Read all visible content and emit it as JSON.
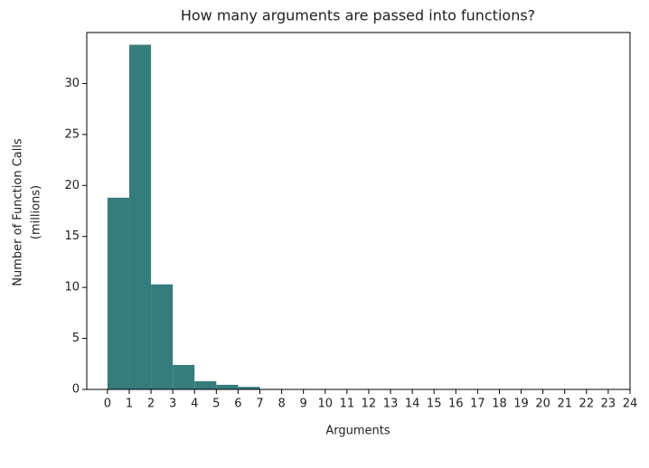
{
  "chart_data": {
    "type": "histogram",
    "title": "How many arguments are passed into functions?",
    "xlabel": "Arguments",
    "ylabel": [
      "Number of Function Calls",
      "(millions)"
    ],
    "bins": [
      0,
      1,
      2,
      3,
      4,
      5,
      6,
      7,
      8,
      9,
      10,
      11,
      12,
      13,
      14,
      15,
      16,
      17,
      18,
      19,
      20,
      21,
      22,
      23,
      24
    ],
    "values": [
      18.8,
      33.8,
      10.3,
      2.4,
      0.8,
      0.45,
      0.25,
      0.05,
      0.03,
      0.02,
      0.01,
      0,
      0,
      0,
      0,
      0,
      0,
      0,
      0,
      0,
      0,
      0,
      0,
      0
    ],
    "color": "#357d7d",
    "xlim": [
      -0.95,
      24
    ],
    "ylim": [
      0,
      35
    ],
    "xticks": [
      0,
      1,
      2,
      3,
      4,
      5,
      6,
      7,
      8,
      9,
      10,
      11,
      12,
      13,
      14,
      15,
      16,
      17,
      18,
      19,
      20,
      21,
      22,
      23,
      24
    ],
    "yticks": [
      0,
      5,
      10,
      15,
      20,
      25,
      30
    ]
  }
}
